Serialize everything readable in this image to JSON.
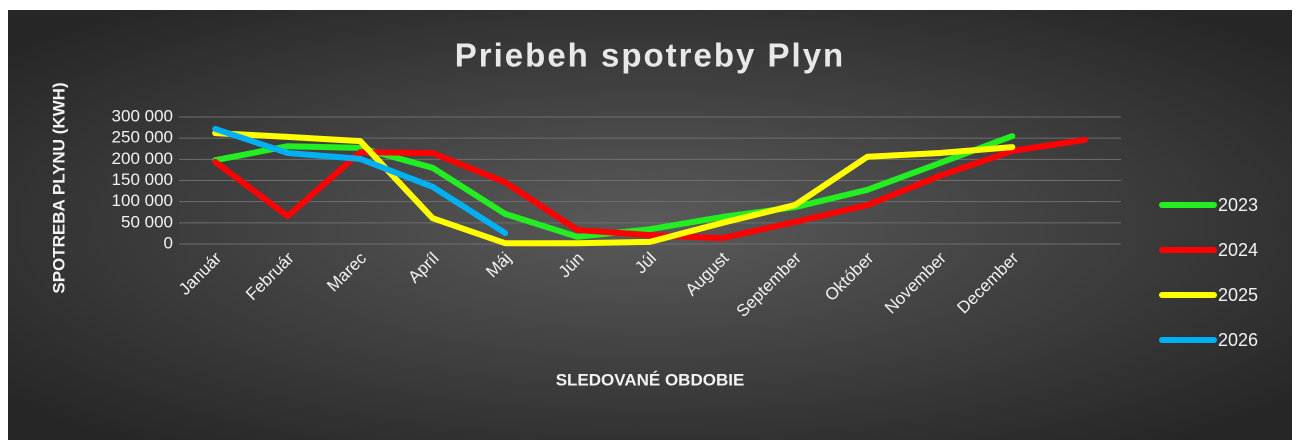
{
  "chart_data": {
    "type": "line",
    "title": "Priebeh spotreby Plyn",
    "x_label": "SLEDOVANÉ OBDOBIE",
    "y_label": "SPOTREBA PLYNU (KWH)",
    "categories": [
      "Január",
      "Február",
      "Marec",
      "Apríl",
      "Máj",
      "Jún",
      "Júl",
      "August",
      "September",
      "Október",
      "November",
      "December",
      null
    ],
    "ylim": [
      0,
      300000
    ],
    "yticks": [
      {
        "value": 0,
        "label": "0"
      },
      {
        "value": 50000,
        "label": "50 000"
      },
      {
        "value": 100000,
        "label": "100 000"
      },
      {
        "value": 150000,
        "label": "150 000"
      },
      {
        "value": 200000,
        "label": "200 000"
      },
      {
        "value": 250000,
        "label": "250 000"
      },
      {
        "value": 300000,
        "label": "300 000"
      }
    ],
    "grid": true,
    "legend": "right",
    "series": [
      {
        "name": "2023",
        "color": "#22ee22",
        "values": [
          198000,
          231000,
          227000,
          180000,
          71000,
          17000,
          35000,
          64000,
          87000,
          128000,
          191000,
          255000,
          null
        ]
      },
      {
        "name": "2024",
        "color": "#ff0000",
        "values": [
          194000,
          66000,
          217000,
          215000,
          146000,
          33000,
          21000,
          14000,
          52000,
          92000,
          161000,
          220000,
          246000
        ]
      },
      {
        "name": "2025",
        "color": "#ffff00",
        "values": [
          262000,
          253000,
          243000,
          61000,
          2000,
          2000,
          5000,
          50000,
          92000,
          206000,
          215000,
          229000,
          null
        ]
      },
      {
        "name": "2026",
        "color": "#00b0f0",
        "values": [
          272000,
          215000,
          201000,
          135000,
          26000,
          null,
          null,
          null,
          null,
          null,
          null,
          null,
          null
        ]
      }
    ]
  }
}
